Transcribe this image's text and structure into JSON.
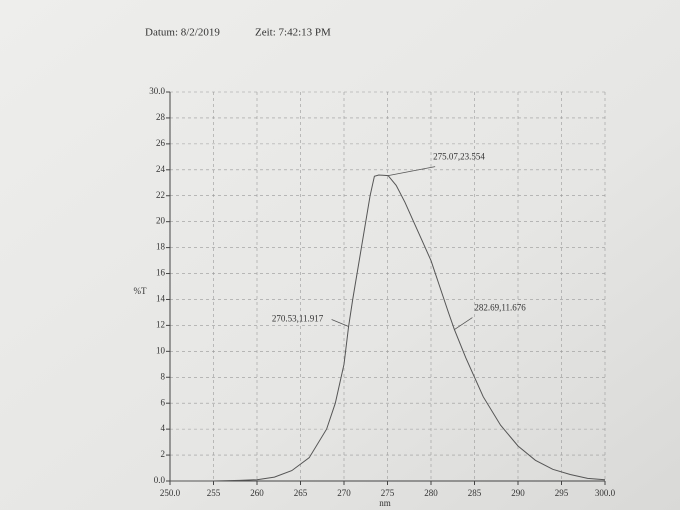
{
  "header": {
    "date": "Datum: 8/2/2019",
    "time": "Zeit: 7:42:13 PM"
  },
  "chart_data": {
    "type": "line",
    "x_label": "nm",
    "y_label": "%T",
    "x": [
      250,
      255,
      258,
      260,
      262,
      264,
      266,
      268,
      269,
      270,
      270.53,
      271,
      272,
      273,
      273.5,
      274,
      275.07,
      276,
      277,
      278,
      279,
      280,
      281,
      282,
      282.69,
      284,
      286,
      288,
      290,
      292,
      294,
      296,
      298,
      300
    ],
    "values": [
      0,
      0,
      0.05,
      0.1,
      0.3,
      0.8,
      1.8,
      4,
      6,
      9,
      11.917,
      14,
      18,
      22,
      23.5,
      23.6,
      23.554,
      22.8,
      21.5,
      20,
      18.5,
      17,
      15,
      13,
      11.676,
      9.5,
      6.5,
      4.3,
      2.7,
      1.6,
      0.9,
      0.5,
      0.2,
      0.1
    ],
    "color": "#555555",
    "xlim": [
      250,
      300
    ],
    "xticks": [
      {
        "value": 250,
        "label": "250.0"
      },
      255,
      260,
      265,
      270,
      275,
      280,
      285,
      290,
      295,
      {
        "value": 300,
        "label": "300.0"
      }
    ],
    "ylim": [
      0,
      30
    ],
    "yticks": [
      {
        "value": 0,
        "label": "0.0"
      },
      2,
      4,
      6,
      8,
      10,
      12,
      14,
      16,
      18,
      20,
      22,
      24,
      26,
      28,
      {
        "value": 30,
        "label": "30.0"
      }
    ],
    "grid": true,
    "annotations": [
      {
        "text": "275.07,23.554",
        "x": 275.07,
        "y": 23.554
      },
      {
        "text": "270.53,11.917",
        "x": 270.53,
        "y": 11.917
      },
      {
        "text": "282.69,11.676",
        "x": 282.69,
        "y": 11.676
      }
    ]
  }
}
